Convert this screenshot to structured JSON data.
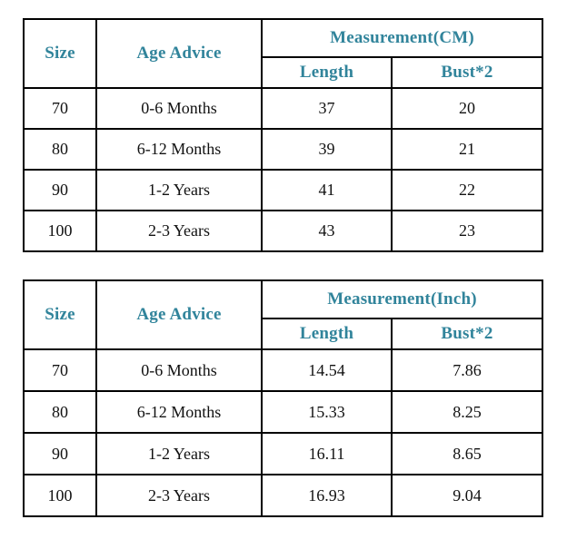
{
  "colors": {
    "accent_header_text": "#31849B",
    "body_text": "#111111",
    "border": "#000000",
    "background": "#FFFFFF"
  },
  "tables": [
    {
      "name": "size-chart-cm",
      "headers": {
        "size": "Size",
        "age_advice": "Age Advice",
        "measurement": "Measurement(CM)",
        "length": "Length",
        "bust": "Bust*2"
      },
      "rows": [
        {
          "size": "70",
          "age_advice": "0-6 Months",
          "length": "37",
          "bust": "20"
        },
        {
          "size": "80",
          "age_advice": "6-12 Months",
          "length": "39",
          "bust": "21"
        },
        {
          "size": "90",
          "age_advice": "1-2 Years",
          "length": "41",
          "bust": "22"
        },
        {
          "size": "100",
          "age_advice": "2-3 Years",
          "length": "43",
          "bust": "23"
        }
      ]
    },
    {
      "name": "size-chart-inch",
      "headers": {
        "size": "Size",
        "age_advice": "Age Advice",
        "measurement": "Measurement(Inch)",
        "length": "Length",
        "bust": "Bust*2"
      },
      "rows": [
        {
          "size": "70",
          "age_advice": "0-6 Months",
          "length": "14.54",
          "bust": "7.86"
        },
        {
          "size": "80",
          "age_advice": "6-12 Months",
          "length": "15.33",
          "bust": "8.25"
        },
        {
          "size": "90",
          "age_advice": "1-2 Years",
          "length": "16.11",
          "bust": "8.65"
        },
        {
          "size": "100",
          "age_advice": "2-3 Years",
          "length": "16.93",
          "bust": "9.04"
        }
      ]
    }
  ]
}
